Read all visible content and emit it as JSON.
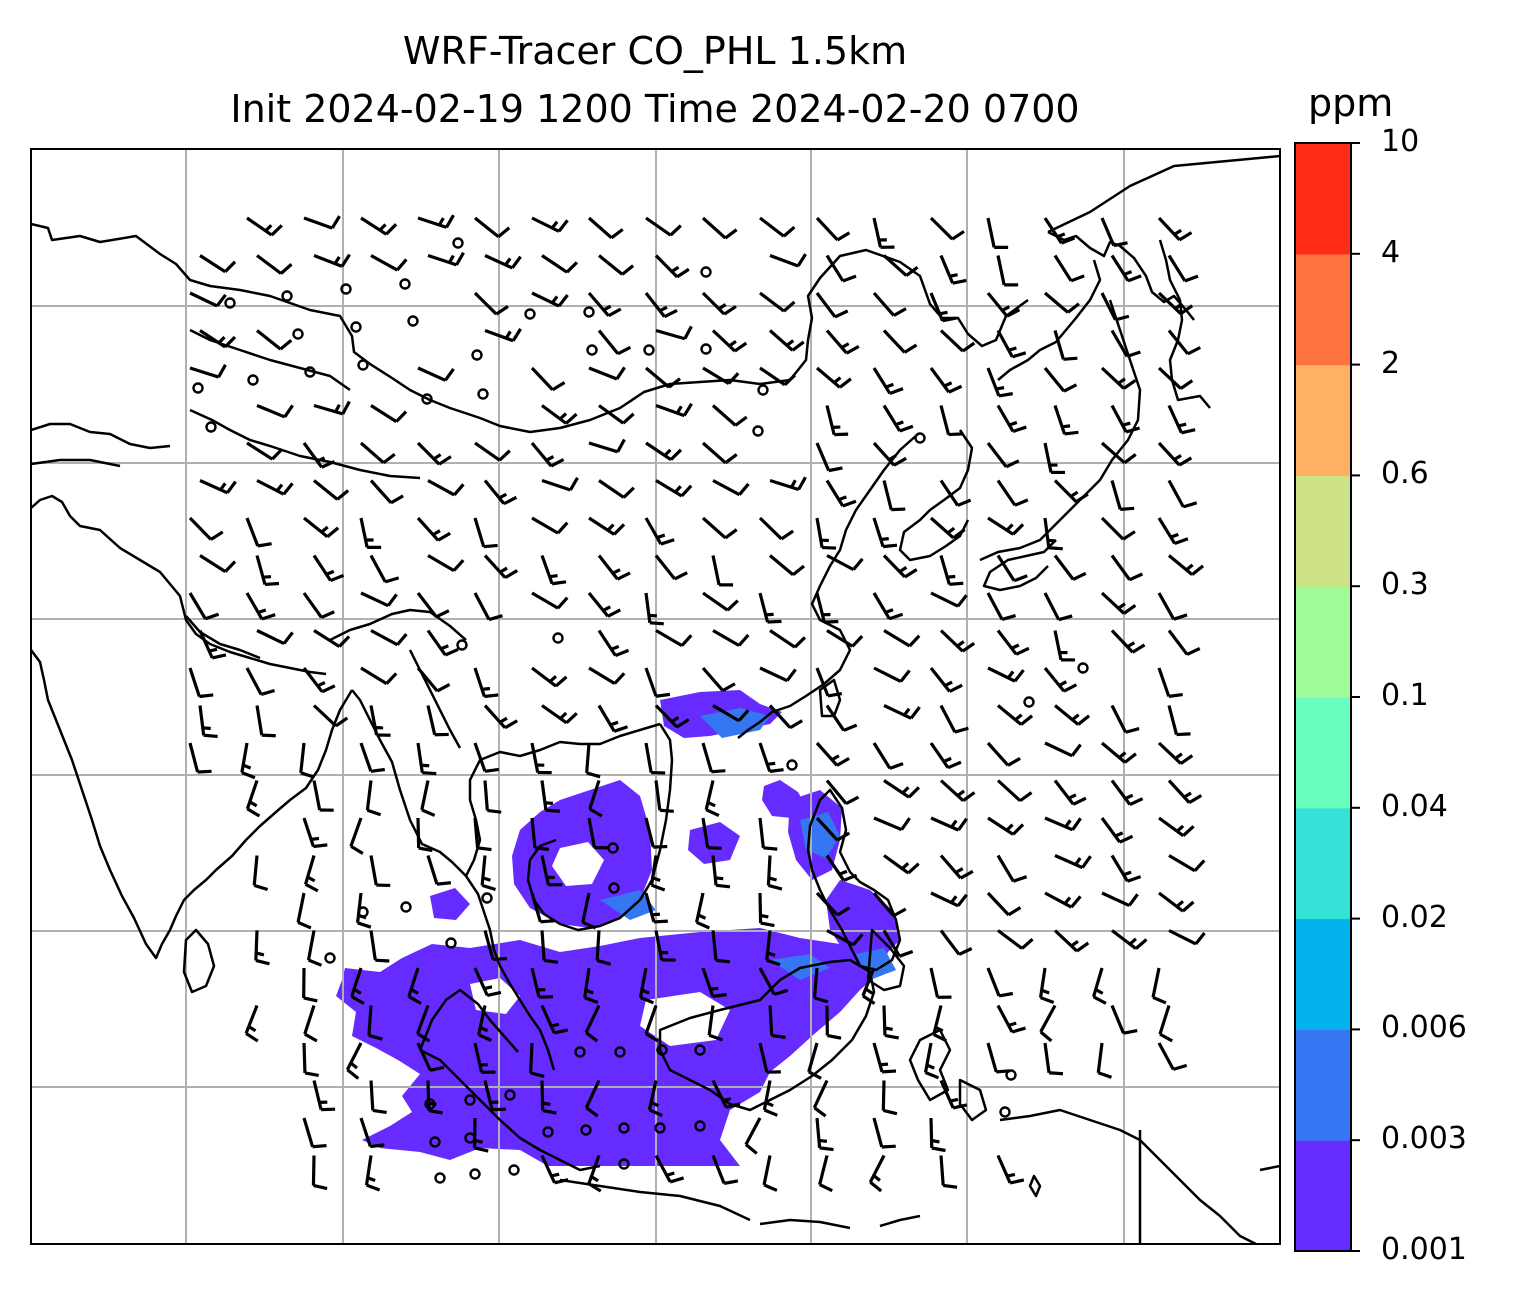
{
  "title": {
    "line1": "WRF-Tracer CO_PHL 1.5km",
    "line2": "Init 2024-02-19 1200 Time 2024-02-20 0700"
  },
  "colorbar": {
    "unit": "ppm",
    "levels": [
      "0.001",
      "0.003",
      "0.006",
      "0.02",
      "0.04",
      "0.1",
      "0.3",
      "0.6",
      "2",
      "4",
      "10"
    ],
    "colors": [
      "#652bff",
      "#3576f3",
      "#03b3ed",
      "#34e2d7",
      "#6afdc0",
      "#9ffa98",
      "#cde186",
      "#ffb062",
      "#ff733e",
      "#ff2c16"
    ]
  },
  "map": {
    "region": "Asia / Maritime Southeast Asia",
    "gridlines": true,
    "coastline_color": "#000000",
    "plume_color": "#652bff",
    "plume_secondary_color": "#3576f3",
    "wind_barbs": true
  }
}
